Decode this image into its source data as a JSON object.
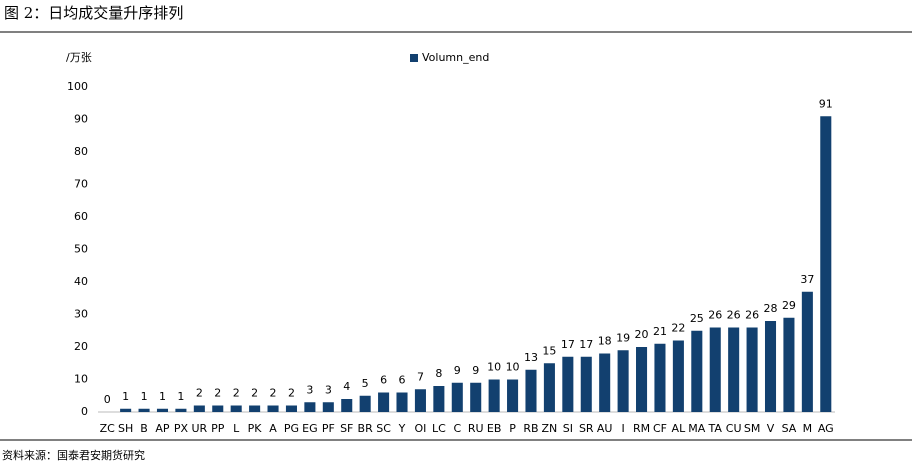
{
  "chart_data": {
    "type": "bar",
    "title": "图 2：日均成交量升序排列",
    "y_label": "/万张",
    "source": "资料来源：国泰君安期货研究",
    "series": [
      {
        "name": "Volumn_end",
        "color": "#12406f",
        "values": [
          0,
          1,
          1,
          1,
          1,
          2,
          2,
          2,
          2,
          2,
          2,
          3,
          3,
          4,
          5,
          6,
          6,
          7,
          8,
          9,
          9,
          10,
          10,
          13,
          15,
          17,
          17,
          18,
          19,
          20,
          21,
          22,
          25,
          26,
          26,
          26,
          28,
          29,
          37,
          91
        ]
      }
    ],
    "categories": [
      "ZC",
      "SH",
      "B",
      "AP",
      "PX",
      "UR",
      "PP",
      "L",
      "PK",
      "A",
      "PG",
      "EG",
      "PF",
      "SF",
      "BR",
      "SC",
      "Y",
      "OI",
      "LC",
      "C",
      "RU",
      "EB",
      "P",
      "RB",
      "ZN",
      "SI",
      "SR",
      "AU",
      "I",
      "RM",
      "CF",
      "AL",
      "MA",
      "TA",
      "CU",
      "SM",
      "V",
      "SA",
      "M",
      "AG"
    ],
    "ylim": [
      0,
      100
    ],
    "yticks": [
      0,
      10,
      20,
      30,
      40,
      50,
      60,
      70,
      80,
      90,
      100
    ],
    "grid": false,
    "legend": "top"
  }
}
